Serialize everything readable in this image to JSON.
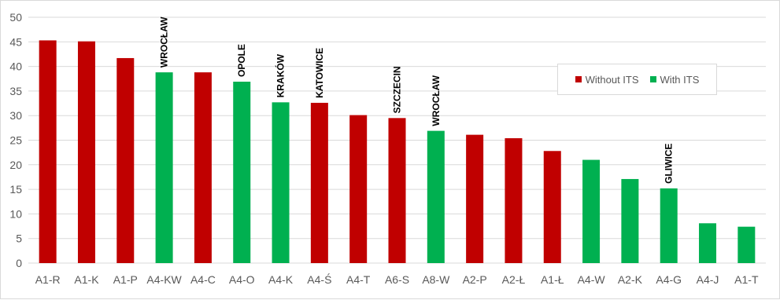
{
  "chart_data": {
    "type": "bar",
    "title": "",
    "xlabel": "",
    "ylabel": "",
    "ylim": [
      0,
      50
    ],
    "yticks": [
      0,
      5,
      10,
      15,
      20,
      25,
      30,
      35,
      40,
      45,
      50
    ],
    "grid": true,
    "legend_position": "top-right",
    "categories": [
      "A1-R",
      "A1-K",
      "A1-P",
      "A4-KW",
      "A4-C",
      "A4-O",
      "A4-K",
      "A4-Ś",
      "A4-T",
      "A6-S",
      "A8-W",
      "A2-P",
      "A2-Ł",
      "A1-Ł",
      "A4-W",
      "A2-K",
      "A4-G",
      "A4-J",
      "A1-T"
    ],
    "values": [
      45.3,
      45.1,
      41.7,
      38.8,
      38.8,
      36.9,
      32.7,
      32.6,
      30.1,
      29.5,
      26.9,
      26.1,
      25.4,
      22.8,
      21.0,
      17.1,
      15.2,
      8.1,
      7.4
    ],
    "groups": [
      "Without ITS",
      "Without ITS",
      "Without ITS",
      "With ITS",
      "Without ITS",
      "With ITS",
      "With ITS",
      "Without ITS",
      "Without ITS",
      "Without ITS",
      "With ITS",
      "Without ITS",
      "Without ITS",
      "Without ITS",
      "With ITS",
      "With ITS",
      "With ITS",
      "With ITS",
      "With ITS"
    ],
    "bar_labels": [
      "",
      "",
      "",
      "WROCŁAW",
      "",
      "OPOLE",
      "KRAKÓW",
      "KATOWICE",
      "",
      "SZCZECIN",
      "WROCŁAW",
      "",
      "",
      "",
      "",
      "",
      "GLIWICE",
      "",
      ""
    ],
    "legend": [
      {
        "name": "Without ITS",
        "color": "#c00000"
      },
      {
        "name": "With ITS",
        "color": "#00b050"
      }
    ]
  }
}
